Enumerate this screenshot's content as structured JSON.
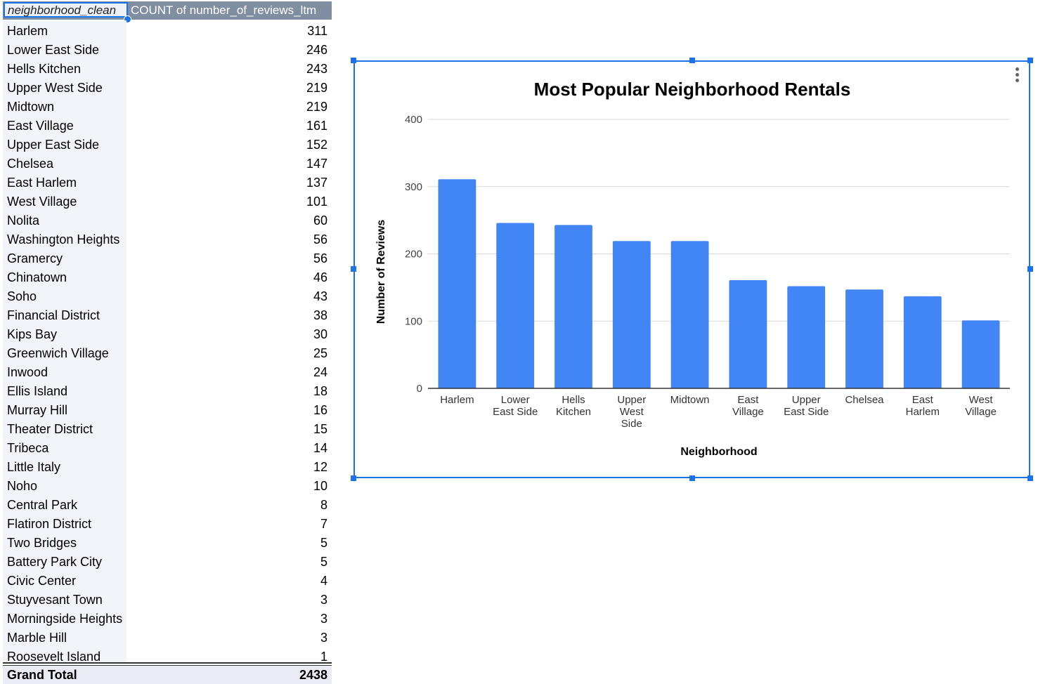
{
  "pivot": {
    "header_left": "neighborhood_clean",
    "header_right": "COUNT of number_of_reviews_ltm",
    "rows": [
      {
        "name": "Harlem",
        "count": "311"
      },
      {
        "name": "Lower East Side",
        "count": "246"
      },
      {
        "name": "Hells Kitchen",
        "count": "243"
      },
      {
        "name": "Upper West Side",
        "count": "219"
      },
      {
        "name": "Midtown",
        "count": "219"
      },
      {
        "name": "East Village",
        "count": "161"
      },
      {
        "name": "Upper East Side",
        "count": "152"
      },
      {
        "name": "Chelsea",
        "count": "147"
      },
      {
        "name": "East Harlem",
        "count": "137"
      },
      {
        "name": "West Village",
        "count": "101"
      },
      {
        "name": "Nolita",
        "count": "60"
      },
      {
        "name": "Washington Heights",
        "count": "56"
      },
      {
        "name": "Gramercy",
        "count": "56"
      },
      {
        "name": "Chinatown",
        "count": "46"
      },
      {
        "name": "Soho",
        "count": "43"
      },
      {
        "name": "Financial District",
        "count": "38"
      },
      {
        "name": "Kips Bay",
        "count": "30"
      },
      {
        "name": "Greenwich Village",
        "count": "25"
      },
      {
        "name": "Inwood",
        "count": "24"
      },
      {
        "name": "Ellis Island",
        "count": "18"
      },
      {
        "name": "Murray Hill",
        "count": "16"
      },
      {
        "name": "Theater District",
        "count": "15"
      },
      {
        "name": "Tribeca",
        "count": "14"
      },
      {
        "name": "Little Italy",
        "count": "12"
      },
      {
        "name": "Noho",
        "count": "10"
      },
      {
        "name": "Central Park",
        "count": "8"
      },
      {
        "name": "Flatiron District",
        "count": "7"
      },
      {
        "name": "Two Bridges",
        "count": "5"
      },
      {
        "name": "Battery Park City",
        "count": "5"
      },
      {
        "name": "Civic Center",
        "count": "4"
      },
      {
        "name": "Stuyvesant Town",
        "count": "3"
      },
      {
        "name": "Morningside Heights",
        "count": "3"
      },
      {
        "name": "Marble Hill",
        "count": "3"
      },
      {
        "name": "Roosevelt Island",
        "count": "1"
      }
    ],
    "total_label": "Grand Total",
    "total_value": "2438"
  },
  "chart_data": {
    "type": "bar",
    "title": "Most Popular Neighborhood Rentals",
    "xlabel": "Neighborhood",
    "ylabel": "Number of Reviews",
    "ylim": [
      0,
      400
    ],
    "yticks": [
      0,
      100,
      200,
      300,
      400
    ],
    "grid": true,
    "bar_color": "#4285f4",
    "categories": [
      "Harlem",
      "Lower East Side",
      "Hells Kitchen",
      "Upper West Side",
      "Midtown",
      "East Village",
      "Upper East Side",
      "Chelsea",
      "East Harlem",
      "West Village"
    ],
    "category_lines": [
      [
        "Harlem"
      ],
      [
        "Lower",
        "East Side"
      ],
      [
        "Hells",
        "Kitchen"
      ],
      [
        "Upper",
        "West",
        "Side"
      ],
      [
        "Midtown"
      ],
      [
        "East",
        "Village"
      ],
      [
        "Upper",
        "East Side"
      ],
      [
        "Chelsea"
      ],
      [
        "East",
        "Harlem"
      ],
      [
        "West",
        "Village"
      ]
    ],
    "values": [
      311,
      246,
      243,
      219,
      219,
      161,
      152,
      147,
      137,
      101
    ]
  }
}
